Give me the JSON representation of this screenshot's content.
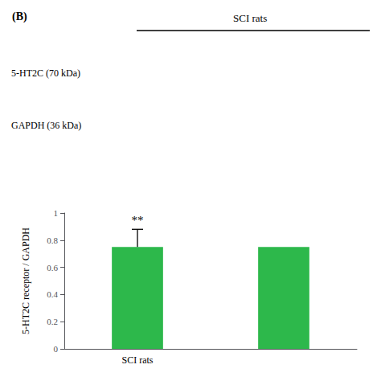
{
  "chart_data": {
    "type": "bar",
    "title": "(B)",
    "annotations": [
      "SCI rats",
      "5-HT2C (70 kDa)",
      "GAPDH (36 kDa)"
    ],
    "categories": [
      "SCI rats",
      null
    ],
    "values": [
      0.75,
      0.75
    ],
    "errors": [
      0.13,
      null
    ],
    "significance": [
      "**",
      null
    ],
    "color": "#2db84b",
    "ylabel": "5-HT2C receptor / GAPDH",
    "ylim": [
      0,
      1.0
    ],
    "yticks": [
      0,
      0.2,
      0.4,
      0.6,
      0.8,
      1.0
    ],
    "grid": false
  }
}
